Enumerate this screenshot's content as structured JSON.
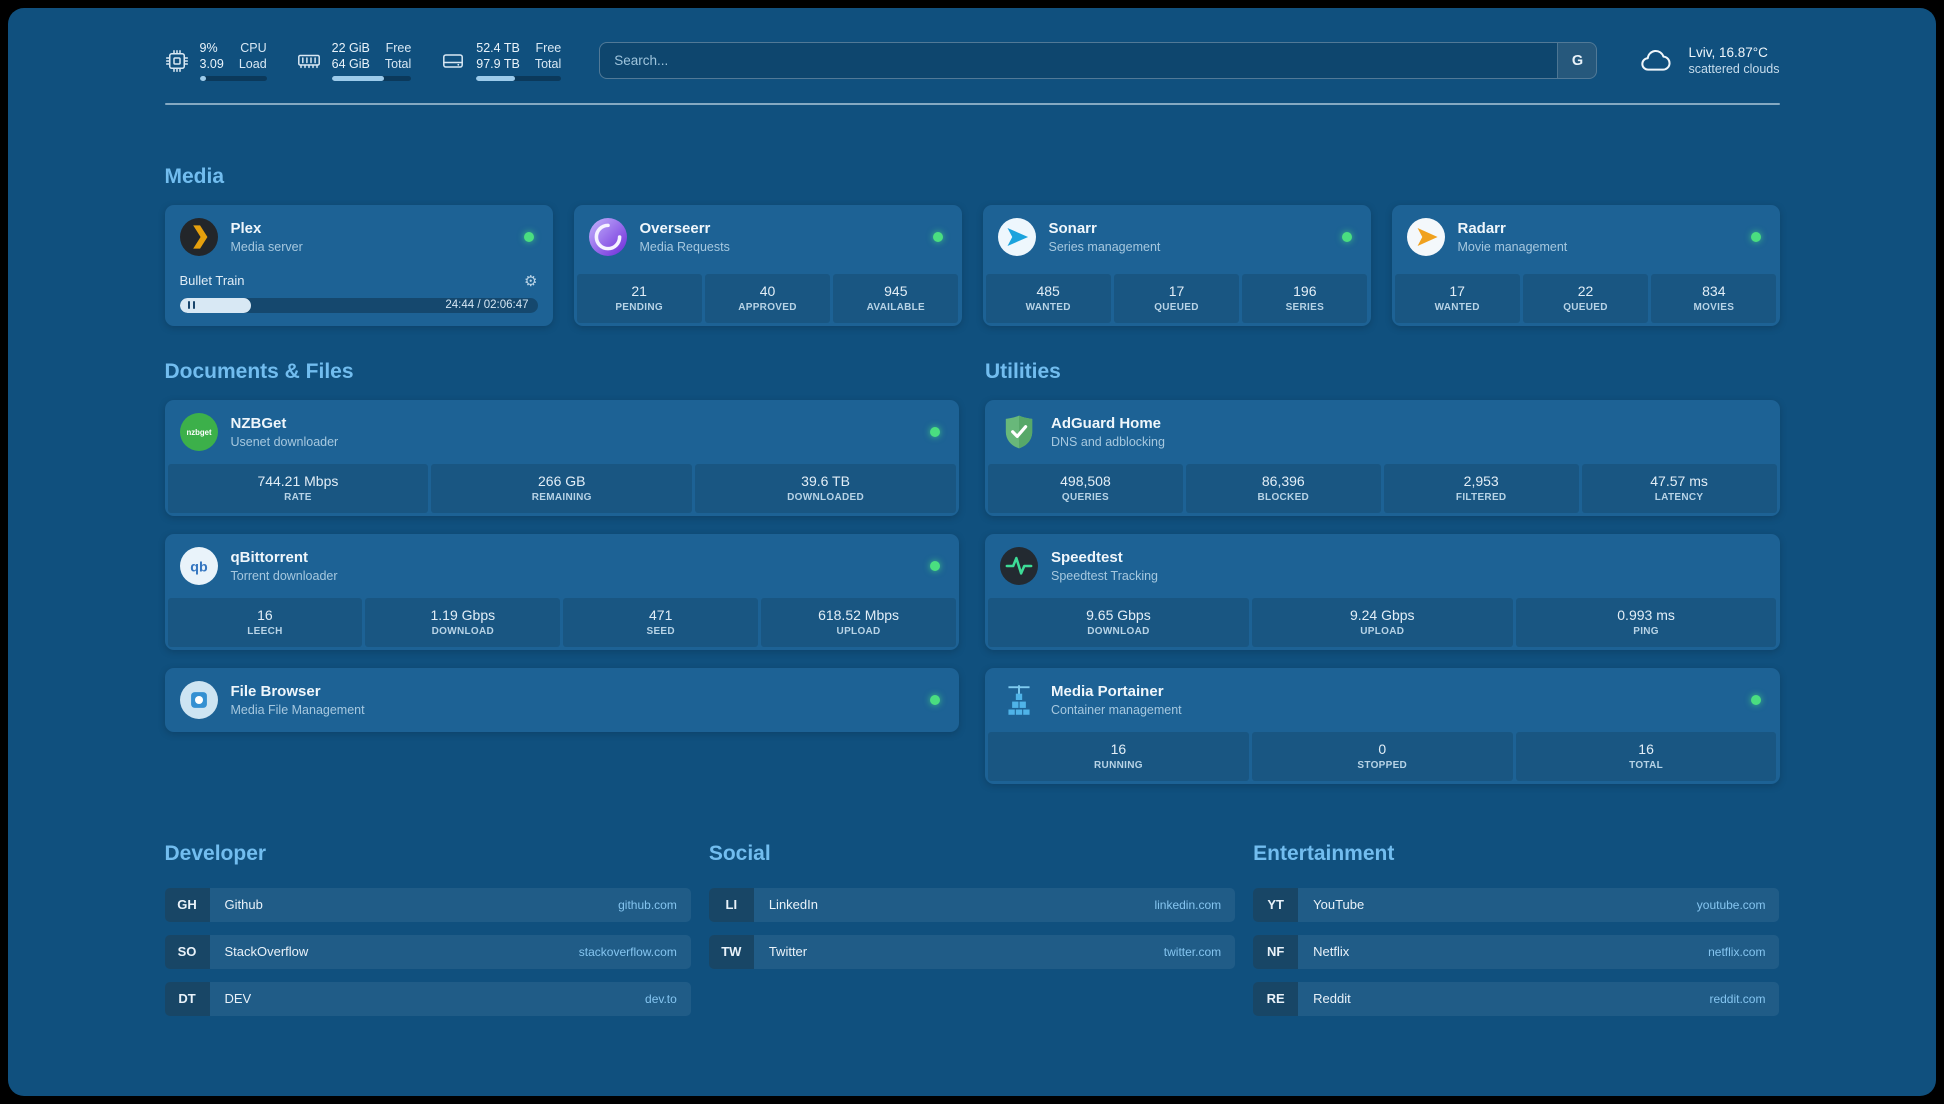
{
  "colors": {
    "background": "#10507E",
    "card": "#1D6295",
    "heading": "#72BDEF",
    "status_online": "#4ADE80",
    "link": "#85C5F0",
    "bar_fill": "#9CCBEB",
    "plex_accent": "#E5A00D"
  },
  "topbar": {
    "cpu": {
      "icon": "cpu-icon",
      "value_top": "9%",
      "label_top": "CPU",
      "value_bottom": "3.09",
      "label_bottom": "Load",
      "percent": 9
    },
    "memory": {
      "icon": "memory-icon",
      "value_top": "22 GiB",
      "label_top": "Free",
      "value_bottom": "64 GiB",
      "label_bottom": "Total",
      "percent": 66
    },
    "disk": {
      "icon": "disk-icon",
      "value_top": "52.4 TB",
      "label_top": "Free",
      "value_bottom": "97.9 TB",
      "label_bottom": "Total",
      "percent": 46
    },
    "search": {
      "placeholder": "Search...",
      "button_label": "G"
    },
    "weather": {
      "icon": "cloud-icon",
      "location": "Lviv, 16.87°C",
      "condition": "scattered clouds"
    }
  },
  "media": {
    "heading": "Media",
    "plex": {
      "icon": "plex-icon",
      "name": "Plex",
      "desc": "Media server",
      "online": true,
      "now_playing": "Bullet Train",
      "time": "24:44 / 02:06:47",
      "progress_percent": 20
    },
    "overseerr": {
      "icon": "overseerr-icon",
      "name": "Overseerr",
      "desc": "Media Requests",
      "online": true,
      "stats": [
        {
          "value": "21",
          "label": "PENDING"
        },
        {
          "value": "40",
          "label": "APPROVED"
        },
        {
          "value": "945",
          "label": "AVAILABLE"
        }
      ]
    },
    "sonarr": {
      "icon": "sonarr-icon",
      "name": "Sonarr",
      "desc": "Series management",
      "online": true,
      "stats": [
        {
          "value": "485",
          "label": "WANTED"
        },
        {
          "value": "17",
          "label": "QUEUED"
        },
        {
          "value": "196",
          "label": "SERIES"
        }
      ]
    },
    "radarr": {
      "icon": "radarr-icon",
      "name": "Radarr",
      "desc": "Movie management",
      "online": true,
      "stats": [
        {
          "value": "17",
          "label": "WANTED"
        },
        {
          "value": "22",
          "label": "QUEUED"
        },
        {
          "value": "834",
          "label": "MOVIES"
        }
      ]
    }
  },
  "documents": {
    "heading": "Documents & Files",
    "nzbget": {
      "icon": "nzbget-icon",
      "name": "NZBGet",
      "desc": "Usenet downloader",
      "online": true,
      "stats": [
        {
          "value": "744.21 Mbps",
          "label": "RATE"
        },
        {
          "value": "266 GB",
          "label": "REMAINING"
        },
        {
          "value": "39.6 TB",
          "label": "DOWNLOADED"
        }
      ]
    },
    "qbittorrent": {
      "icon": "qbittorrent-icon",
      "name": "qBittorrent",
      "desc": "Torrent downloader",
      "online": true,
      "stats": [
        {
          "value": "16",
          "label": "LEECH"
        },
        {
          "value": "1.19 Gbps",
          "label": "DOWNLOAD"
        },
        {
          "value": "471",
          "label": "SEED"
        },
        {
          "value": "618.52 Mbps",
          "label": "UPLOAD"
        }
      ]
    },
    "filebrowser": {
      "icon": "filebrowser-icon",
      "name": "File Browser",
      "desc": "Media File Management",
      "online": true
    }
  },
  "utilities": {
    "heading": "Utilities",
    "adguard": {
      "icon": "adguard-icon",
      "name": "AdGuard Home",
      "desc": "DNS and adblocking",
      "stats": [
        {
          "value": "498,508",
          "label": "QUERIES"
        },
        {
          "value": "86,396",
          "label": "BLOCKED"
        },
        {
          "value": "2,953",
          "label": "FILTERED"
        },
        {
          "value": "47.57 ms",
          "label": "LATENCY"
        }
      ]
    },
    "speedtest": {
      "icon": "speedtest-icon",
      "name": "Speedtest",
      "desc": "Speedtest Tracking",
      "stats": [
        {
          "value": "9.65 Gbps",
          "label": "DOWNLOAD"
        },
        {
          "value": "9.24 Gbps",
          "label": "UPLOAD"
        },
        {
          "value": "0.993 ms",
          "label": "PING"
        }
      ]
    },
    "portainer": {
      "icon": "portainer-icon",
      "name": "Media Portainer",
      "desc": "Container management",
      "online": true,
      "stats": [
        {
          "value": "16",
          "label": "RUNNING"
        },
        {
          "value": "0",
          "label": "STOPPED"
        },
        {
          "value": "16",
          "label": "TOTAL"
        }
      ]
    }
  },
  "bookmarks": {
    "developer": {
      "heading": "Developer",
      "items": [
        {
          "abbr": "GH",
          "name": "Github",
          "url": "github.com"
        },
        {
          "abbr": "SO",
          "name": "StackOverflow",
          "url": "stackoverflow.com"
        },
        {
          "abbr": "DT",
          "name": "DEV",
          "url": "dev.to"
        }
      ]
    },
    "social": {
      "heading": "Social",
      "items": [
        {
          "abbr": "LI",
          "name": "LinkedIn",
          "url": "linkedin.com"
        },
        {
          "abbr": "TW",
          "name": "Twitter",
          "url": "twitter.com"
        }
      ]
    },
    "entertainment": {
      "heading": "Entertainment",
      "items": [
        {
          "abbr": "YT",
          "name": "YouTube",
          "url": "youtube.com"
        },
        {
          "abbr": "NF",
          "name": "Netflix",
          "url": "netflix.com"
        },
        {
          "abbr": "RE",
          "name": "Reddit",
          "url": "reddit.com"
        }
      ]
    }
  }
}
